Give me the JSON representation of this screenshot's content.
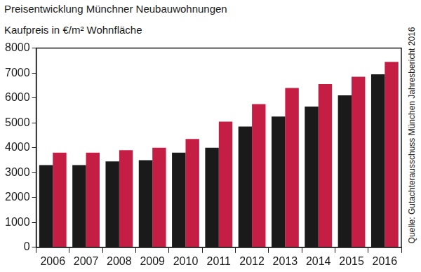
{
  "chart_data": {
    "type": "bar",
    "title": "Preisentwicklung Münchner Neubauwohnungen",
    "subtitle": "Kaufpreis in €/m² Wohnfläche",
    "annotations": [
      "Quelle: Gutachterausschuss München Jahresbericht 2016"
    ],
    "categories": [
      "2006",
      "2007",
      "2008",
      "2009",
      "2010",
      "2011",
      "2012",
      "2013",
      "2014",
      "2015",
      "2016"
    ],
    "series": [
      {
        "color": "#1a1a1a",
        "values": [
          3300,
          3300,
          3450,
          3500,
          3800,
          4000,
          4850,
          5250,
          5650,
          6100,
          6950
        ]
      },
      {
        "color": "#c41e45",
        "values": [
          3800,
          3800,
          3900,
          4000,
          4350,
          5050,
          5750,
          6400,
          6550,
          6850,
          7450
        ]
      }
    ],
    "ylim": [
      0,
      8000
    ],
    "yticks": [
      0,
      1000,
      2000,
      3000,
      4000,
      5000,
      6000,
      7000,
      8000
    ],
    "grid": false
  }
}
